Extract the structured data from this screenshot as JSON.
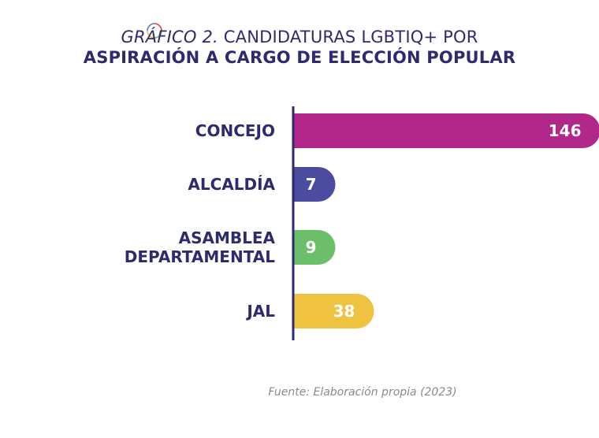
{
  "title": {
    "prefix": "GRÁFICO 2.",
    "line1_rest": " CANDIDATURAS LGBTIQ+ POR",
    "line2": "ASPIRACIÓN A CARGO DE ELECCIÓN POPULAR"
  },
  "source": "Fuente: Elaboración propia (2023)",
  "colors": {
    "title": "#2e2a6e",
    "axis": "#2e2a6e",
    "category_label": "#2e2a6e",
    "value_label": "#ffffff"
  },
  "chart_data": {
    "type": "bar",
    "orientation": "horizontal",
    "categories": [
      "CONCEJO",
      "ALCALDÍA",
      "ASAMBLEA DEPARTAMENTAL",
      "JAL"
    ],
    "category_lines": [
      [
        "CONCEJO"
      ],
      [
        "ALCALDÍA"
      ],
      [
        "ASAMBLEA",
        "DEPARTAMENTAL"
      ],
      [
        "JAL"
      ]
    ],
    "values": [
      146,
      7,
      9,
      38
    ],
    "bar_colors": [
      "#b1288a",
      "#4b4ba0",
      "#6bbf6b",
      "#efc23f"
    ],
    "title": "GRÁFICO 2. CANDIDATURAS LGBTIQ+ POR ASPIRACIÓN A CARGO DE ELECCIÓN POPULAR",
    "grid": false,
    "legend": "none",
    "data_labels": true
  }
}
